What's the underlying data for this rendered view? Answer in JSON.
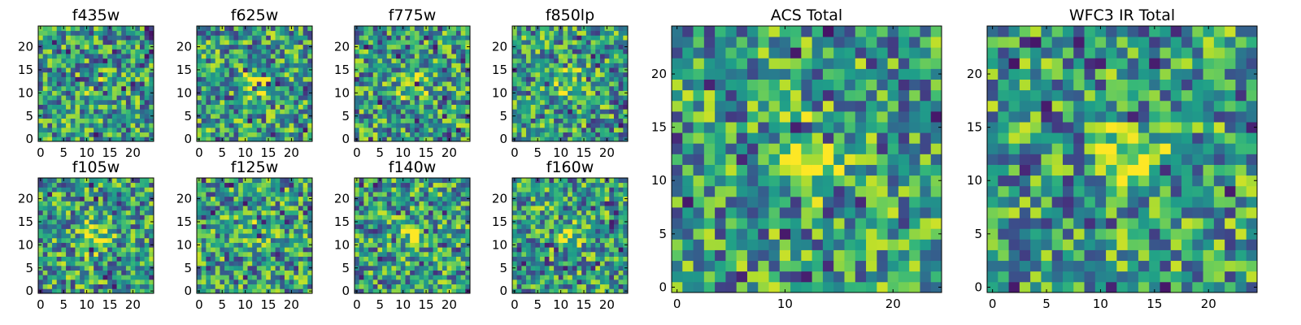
{
  "figure": {
    "title": ""
  },
  "chart_data": [
    {
      "type": "heatmap",
      "title": "f435w",
      "grid": 25,
      "xticks": [
        0,
        5,
        10,
        15,
        20
      ],
      "yticks": [
        0,
        5,
        10,
        15,
        20
      ],
      "xlim": [
        0,
        24
      ],
      "ylim": [
        0,
        24
      ],
      "colormap": "viridis",
      "hotspot": [
        12,
        12
      ],
      "hotspot_strength": 0.15
    },
    {
      "type": "heatmap",
      "title": "f625w",
      "grid": 25,
      "xticks": [
        0,
        5,
        10,
        15,
        20
      ],
      "yticks": [
        0,
        5,
        10,
        15,
        20
      ],
      "xlim": [
        0,
        24
      ],
      "ylim": [
        0,
        24
      ],
      "colormap": "viridis",
      "hotspot": [
        12,
        12
      ],
      "hotspot_strength": 0.35
    },
    {
      "type": "heatmap",
      "title": "f775w",
      "grid": 25,
      "xticks": [
        0,
        5,
        10,
        15,
        20
      ],
      "yticks": [
        0,
        5,
        10,
        15,
        20
      ],
      "xlim": [
        0,
        24
      ],
      "ylim": [
        0,
        24
      ],
      "colormap": "viridis",
      "hotspot": [
        12,
        12
      ],
      "hotspot_strength": 0.35
    },
    {
      "type": "heatmap",
      "title": "f850lp",
      "grid": 25,
      "xticks": [
        0,
        5,
        10,
        15,
        20
      ],
      "yticks": [
        0,
        5,
        10,
        15,
        20
      ],
      "xlim": [
        0,
        24
      ],
      "ylim": [
        0,
        24
      ],
      "colormap": "viridis",
      "hotspot": [
        12,
        12
      ],
      "hotspot_strength": 0.3
    },
    {
      "type": "heatmap",
      "title": "f105w",
      "grid": 25,
      "xticks": [
        0,
        5,
        10,
        15,
        20
      ],
      "yticks": [
        0,
        5,
        10,
        15,
        20
      ],
      "xlim": [
        0,
        24
      ],
      "ylim": [
        0,
        24
      ],
      "colormap": "viridis",
      "hotspot": [
        12,
        12
      ],
      "hotspot_strength": 0.35
    },
    {
      "type": "heatmap",
      "title": "f125w",
      "grid": 25,
      "xticks": [
        0,
        5,
        10,
        15,
        20
      ],
      "yticks": [
        0,
        5,
        10,
        15,
        20
      ],
      "xlim": [
        0,
        24
      ],
      "ylim": [
        0,
        24
      ],
      "colormap": "viridis",
      "hotspot": [
        12,
        14
      ],
      "hotspot_strength": 0.25
    },
    {
      "type": "heatmap",
      "title": "f140w",
      "grid": 25,
      "xticks": [
        0,
        5,
        10,
        15,
        20
      ],
      "yticks": [
        0,
        5,
        10,
        15,
        20
      ],
      "xlim": [
        0,
        24
      ],
      "ylim": [
        0,
        24
      ],
      "colormap": "viridis",
      "hotspot": [
        12,
        12
      ],
      "hotspot_strength": 0.25
    },
    {
      "type": "heatmap",
      "title": "f160w",
      "grid": 25,
      "xticks": [
        0,
        5,
        10,
        15,
        20
      ],
      "yticks": [
        0,
        5,
        10,
        15,
        20
      ],
      "xlim": [
        0,
        24
      ],
      "ylim": [
        0,
        24
      ],
      "colormap": "viridis",
      "hotspot": [
        12,
        12
      ],
      "hotspot_strength": 0.25
    },
    {
      "type": "heatmap",
      "title": "ACS Total",
      "grid": 25,
      "xticks": [
        0,
        10,
        20
      ],
      "yticks": [
        0,
        5,
        10,
        15,
        20
      ],
      "xlim": [
        0,
        24
      ],
      "ylim": [
        0,
        24
      ],
      "colormap": "viridis",
      "hotspot": [
        12,
        12
      ],
      "hotspot_strength": 0.5
    },
    {
      "type": "heatmap",
      "title": "WFC3 IR Total",
      "grid": 25,
      "xticks": [
        0,
        5,
        10,
        15,
        20
      ],
      "yticks": [
        0,
        5,
        10,
        15,
        20
      ],
      "xlim": [
        0,
        24
      ],
      "ylim": [
        0,
        24
      ],
      "colormap": "viridis",
      "hotspot": [
        13,
        12
      ],
      "hotspot_strength": 0.4
    }
  ]
}
